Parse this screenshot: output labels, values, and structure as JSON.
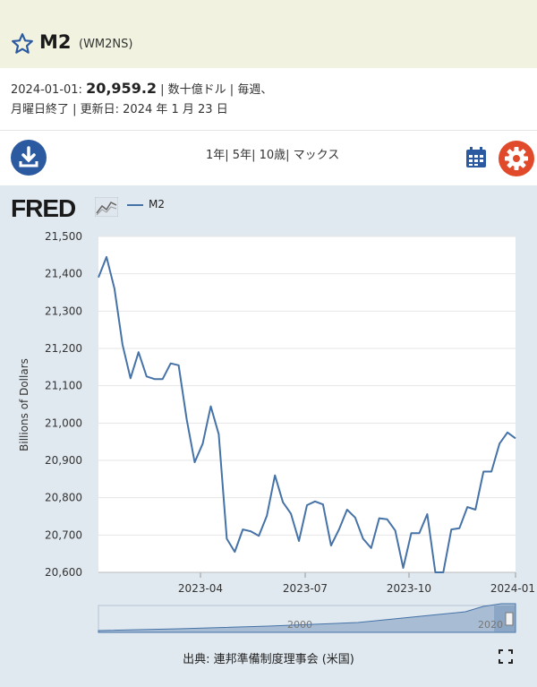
{
  "header": {
    "title": "M2",
    "series_id": "(WM2NS)"
  },
  "info": {
    "date": "2024-01-01:",
    "value": "20,959.2",
    "line1_rest": " | 数十億ドル | 毎週、",
    "line2": "月曜日終了 | 更新日: 2024 年 1 月 23 日"
  },
  "toolbar": {
    "range_1y": "1年",
    "range_5y": "5年",
    "range_10y": "10歳",
    "range_max": "マックス"
  },
  "legend": {
    "label": "M2",
    "logo": "FRED"
  },
  "colors": {
    "series": "#4572a7",
    "download_bg": "#2c5aa0",
    "gear_bg": "#e04a2a",
    "chart_bg": "#e1e9f0"
  },
  "footer": {
    "source": "出典: 連邦準備制度理事会 (米国)"
  },
  "navigator": {
    "label_left": "2000",
    "label_right": "2020"
  },
  "chart_data": {
    "type": "line",
    "title": "",
    "xlabel": "",
    "ylabel": "Billions of Dollars",
    "ylim": [
      20600,
      21500
    ],
    "yticks": [
      "21,500",
      "21,400",
      "21,300",
      "21,200",
      "21,100",
      "21,000",
      "20,900",
      "20,800",
      "20,700",
      "20,600"
    ],
    "xticks": [
      "2023-04",
      "2023-07",
      "2023-10",
      "2024-01"
    ],
    "grid": true,
    "series": [
      {
        "name": "M2",
        "values": [
          21390,
          21445,
          21360,
          21210,
          21120,
          21190,
          21125,
          21118,
          21118,
          21160,
          21155,
          21010,
          20895,
          20945,
          21045,
          20970,
          20690,
          20655,
          20715,
          20710,
          20698,
          20752,
          20860,
          20788,
          20757,
          20684,
          20780,
          20790,
          20782,
          20672,
          20715,
          20768,
          20747,
          20690,
          20665,
          20745,
          20742,
          20712,
          20612,
          20705,
          20705,
          20756,
          20600,
          20600,
          20715,
          20718,
          20775,
          20768,
          20870,
          20870,
          20945,
          20975,
          20959
        ]
      }
    ]
  }
}
